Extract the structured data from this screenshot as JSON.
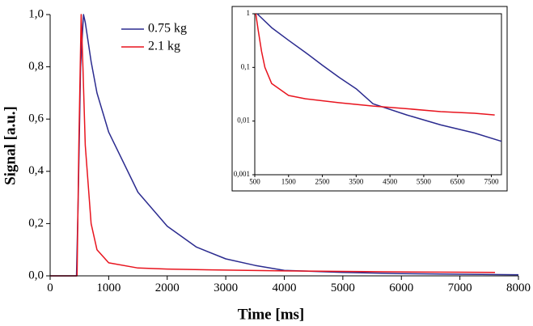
{
  "chart_data": [
    {
      "type": "line",
      "xlabel": "Time  [ms]",
      "ylabel": "Signal  [a.u.]",
      "xlim": [
        0,
        8000
      ],
      "xticks": [
        0,
        1000,
        2000,
        3000,
        4000,
        5000,
        6000,
        7000,
        8000
      ],
      "ylim": [
        0,
        1
      ],
      "yticks": [
        {
          "value": 0,
          "label": "0,0"
        },
        {
          "value": 0.2,
          "label": "0,2"
        },
        {
          "value": 0.4,
          "label": "0,4"
        },
        {
          "value": 0.6,
          "label": "0,6"
        },
        {
          "value": 0.8,
          "label": "0,8"
        },
        {
          "value": 1,
          "label": "1,0"
        }
      ],
      "legend": "upper-left",
      "series": [
        {
          "name": "0.75 kg",
          "color": "#2b2b8f",
          "x": [
            0,
            450,
            480,
            520,
            570,
            600,
            700,
            800,
            1000,
            1500,
            2000,
            2500,
            3000,
            3500,
            4000,
            5000,
            6000,
            7000,
            8000
          ],
          "values": [
            0,
            0,
            0.3,
            0.8,
            1,
            0.97,
            0.82,
            0.7,
            0.55,
            0.32,
            0.19,
            0.11,
            0.065,
            0.04,
            0.021,
            0.013,
            0.0085,
            0.006,
            0.0042
          ]
        },
        {
          "name": "2.1 kg",
          "color": "#e8141e",
          "x": [
            0,
            460,
            490,
            530,
            560,
            600,
            700,
            800,
            1000,
            1500,
            2000,
            3000,
            4000,
            5000,
            6000,
            7000,
            7600
          ],
          "values": [
            0,
            0,
            0.5,
            1,
            0.8,
            0.5,
            0.2,
            0.1,
            0.05,
            0.03,
            0.026,
            0.022,
            0.019,
            0.017,
            0.015,
            0.014,
            0.013
          ]
        }
      ]
    },
    {
      "type": "line",
      "log_y": true,
      "xlim": [
        500,
        7800
      ],
      "xticks": [
        500,
        1500,
        2500,
        3500,
        4500,
        5500,
        6500,
        7500
      ],
      "ylim": [
        0.001,
        1
      ],
      "yticks": [
        {
          "value": 0.001,
          "label": "0,001"
        },
        {
          "value": 0.01,
          "label": "0,01"
        },
        {
          "value": 0.1,
          "label": "0,1"
        },
        1
      ],
      "series": [
        {
          "color": "#2b2b8f",
          "x": [
            570,
            1000,
            1500,
            2000,
            2500,
            3000,
            3500,
            4000,
            5000,
            6000,
            7000,
            7800
          ],
          "values": [
            1,
            0.55,
            0.32,
            0.19,
            0.11,
            0.065,
            0.04,
            0.021,
            0.013,
            0.0085,
            0.006,
            0.0042
          ]
        },
        {
          "color": "#e8141e",
          "x": [
            530,
            600,
            700,
            800,
            1000,
            1500,
            2000,
            3000,
            4000,
            5000,
            6000,
            7000,
            7600
          ],
          "values": [
            1,
            0.5,
            0.2,
            0.1,
            0.05,
            0.03,
            0.026,
            0.022,
            0.019,
            0.017,
            0.015,
            0.014,
            0.013
          ]
        }
      ]
    }
  ]
}
